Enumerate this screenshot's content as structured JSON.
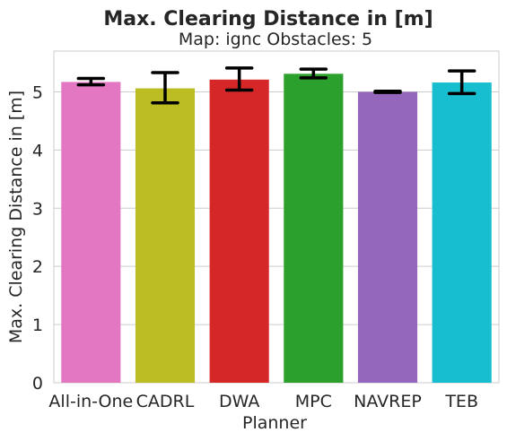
{
  "chart_data": {
    "type": "bar",
    "title": "Max. Clearing Distance in [m]",
    "subtitle": "Map: ignc Obstacles: 5",
    "xlabel": "Planner",
    "ylabel": "Max. Clearing Distance in [m]",
    "categories": [
      "All-in-One",
      "CADRL",
      "DWA",
      "MPC",
      "NAVREP",
      "TEB"
    ],
    "values": [
      5.17,
      5.06,
      5.21,
      5.31,
      5.0,
      5.16
    ],
    "error_low": [
      5.12,
      4.81,
      5.03,
      5.24,
      4.99,
      4.97
    ],
    "error_high": [
      5.23,
      5.33,
      5.41,
      5.39,
      5.01,
      5.36
    ],
    "colors": [
      "#e377c2",
      "#bcbd22",
      "#d62728",
      "#2ca02c",
      "#9467bd",
      "#17becf"
    ],
    "ylim": [
      0,
      5.7
    ],
    "yticks": [
      "0",
      "1",
      "2",
      "3",
      "4",
      "5"
    ],
    "grid": true,
    "legend": "none"
  }
}
